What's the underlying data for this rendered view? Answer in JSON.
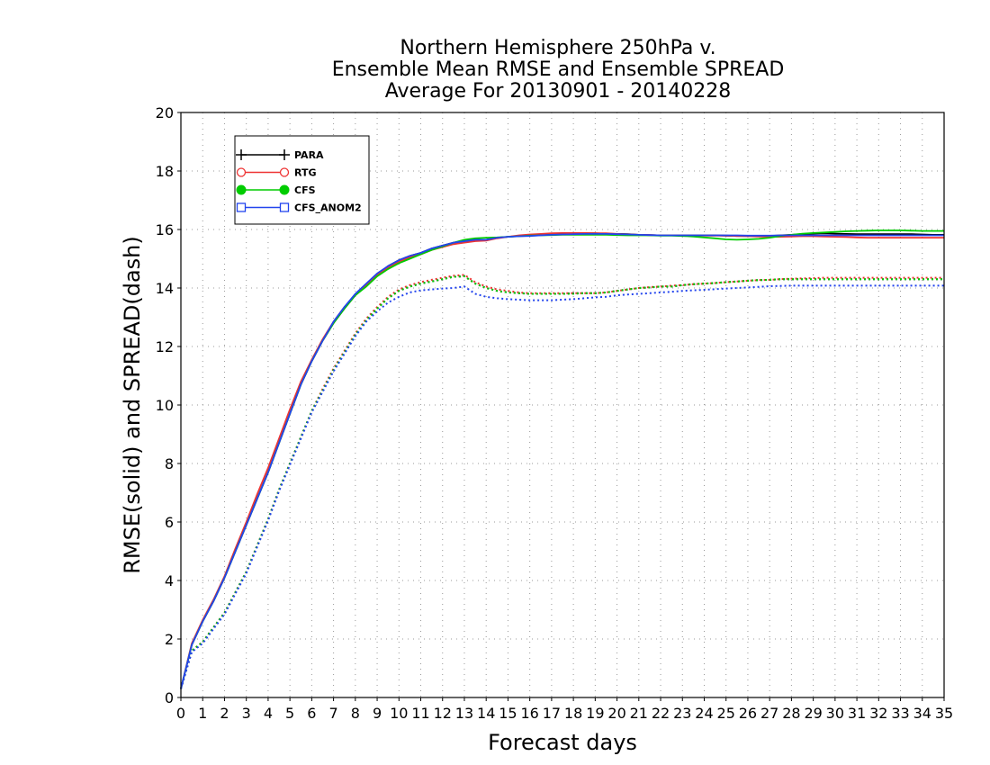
{
  "chart_data": {
    "type": "line",
    "title_lines": [
      "Northern Hemisphere 250hPa v.",
      "Ensemble Mean RMSE and Ensemble SPREAD",
      "Average For 20130901 - 20140228"
    ],
    "xlabel": "Forecast days",
    "ylabel": "RMSE(solid) and SPREAD(dash)",
    "xlim": [
      0,
      35
    ],
    "ylim": [
      0,
      20
    ],
    "x_ticks": [
      0,
      1,
      2,
      3,
      4,
      5,
      6,
      7,
      8,
      9,
      10,
      11,
      12,
      13,
      14,
      15,
      16,
      17,
      18,
      19,
      20,
      21,
      22,
      23,
      24,
      25,
      26,
      27,
      28,
      29,
      30,
      31,
      32,
      33,
      34,
      35
    ],
    "y_ticks": [
      0,
      2,
      4,
      6,
      8,
      10,
      12,
      14,
      16,
      18,
      20
    ],
    "grid": true,
    "legend_placement": "top-left",
    "x": [
      0,
      0.5,
      1,
      1.5,
      2,
      2.5,
      3,
      3.5,
      4,
      4.5,
      5,
      5.5,
      6,
      6.5,
      7,
      7.5,
      8,
      8.5,
      9,
      9.5,
      10,
      10.5,
      11,
      11.5,
      12,
      12.5,
      13,
      13.5,
      14,
      14.5,
      15,
      15.5,
      16,
      16.5,
      17,
      17.5,
      18,
      18.5,
      19,
      19.5,
      20,
      20.5,
      21,
      21.5,
      22,
      22.5,
      23,
      23.5,
      24,
      24.5,
      25,
      25.5,
      26,
      26.5,
      27,
      27.5,
      28,
      28.5,
      29,
      29.5,
      30,
      30.5,
      31,
      31.5,
      32,
      32.5,
      33,
      33.5,
      34,
      34.5,
      35
    ],
    "series": [
      {
        "name": "PARA",
        "color": "#000000",
        "marker": "plus",
        "rmse": [
          0.3,
          1.8,
          2.6,
          3.3,
          4.1,
          5.0,
          5.9,
          6.8,
          7.7,
          8.7,
          9.7,
          10.7,
          11.5,
          12.2,
          12.8,
          13.3,
          13.75,
          14.1,
          14.45,
          14.75,
          14.95,
          15.1,
          15.2,
          15.35,
          15.45,
          15.55,
          15.6,
          15.65,
          15.65,
          15.72,
          15.75,
          15.78,
          15.8,
          15.82,
          15.84,
          15.85,
          15.86,
          15.87,
          15.87,
          15.86,
          15.85,
          15.84,
          15.82,
          15.81,
          15.8,
          15.8,
          15.8,
          15.8,
          15.8,
          15.8,
          15.79,
          15.78,
          15.78,
          15.78,
          15.78,
          15.8,
          15.82,
          15.84,
          15.86,
          15.87,
          15.86,
          15.85,
          15.84,
          15.84,
          15.84,
          15.84,
          15.84,
          15.84,
          15.83,
          15.82,
          15.82
        ],
        "spread": [
          0.3,
          1.6,
          1.9,
          2.4,
          2.9,
          3.6,
          4.3,
          5.2,
          6.1,
          7.1,
          8.0,
          8.9,
          9.8,
          10.5,
          11.2,
          11.8,
          12.4,
          12.9,
          13.3,
          13.65,
          13.9,
          14.05,
          14.15,
          14.22,
          14.3,
          14.38,
          14.4,
          14.15,
          14.0,
          13.9,
          13.85,
          13.82,
          13.8,
          13.8,
          13.8,
          13.8,
          13.82,
          13.82,
          13.82,
          13.85,
          13.9,
          13.95,
          14.0,
          14.02,
          14.05,
          14.05,
          14.1,
          14.13,
          14.15,
          14.17,
          14.2,
          14.22,
          14.25,
          14.27,
          14.28,
          14.3,
          14.3,
          14.3,
          14.3,
          14.3,
          14.3,
          14.3,
          14.3,
          14.3,
          14.3,
          14.3,
          14.3,
          14.3,
          14.3,
          14.3,
          14.3
        ]
      },
      {
        "name": "RTG",
        "color": "#ee3333",
        "marker": "circle",
        "rmse": [
          0.3,
          1.85,
          2.65,
          3.35,
          4.15,
          5.1,
          6.0,
          6.95,
          7.85,
          8.85,
          9.85,
          10.8,
          11.55,
          12.25,
          12.85,
          13.35,
          13.75,
          14.1,
          14.45,
          14.7,
          14.9,
          15.05,
          15.15,
          15.3,
          15.4,
          15.5,
          15.55,
          15.6,
          15.62,
          15.7,
          15.75,
          15.8,
          15.83,
          15.85,
          15.87,
          15.88,
          15.88,
          15.88,
          15.87,
          15.87,
          15.85,
          15.83,
          15.82,
          15.81,
          15.8,
          15.8,
          15.79,
          15.79,
          15.79,
          15.79,
          15.79,
          15.78,
          15.77,
          15.76,
          15.75,
          15.75,
          15.76,
          15.77,
          15.77,
          15.76,
          15.75,
          15.74,
          15.73,
          15.72,
          15.72,
          15.72,
          15.72,
          15.72,
          15.72,
          15.72,
          15.72
        ],
        "spread": [
          0.3,
          1.6,
          1.9,
          2.4,
          2.9,
          3.6,
          4.3,
          5.2,
          6.1,
          7.1,
          8.0,
          8.9,
          9.8,
          10.55,
          11.25,
          11.85,
          12.45,
          12.95,
          13.35,
          13.7,
          13.95,
          14.1,
          14.2,
          14.28,
          14.35,
          14.42,
          14.45,
          14.2,
          14.05,
          13.95,
          13.9,
          13.85,
          13.82,
          13.82,
          13.82,
          13.82,
          13.82,
          13.82,
          13.82,
          13.85,
          13.9,
          13.95,
          14.0,
          14.03,
          14.05,
          14.08,
          14.1,
          14.13,
          14.15,
          14.17,
          14.2,
          14.22,
          14.25,
          14.27,
          14.28,
          14.3,
          14.32,
          14.33,
          14.34,
          14.35,
          14.35,
          14.35,
          14.35,
          14.35,
          14.35,
          14.35,
          14.35,
          14.35,
          14.35,
          14.35,
          14.35
        ]
      },
      {
        "name": "CFS",
        "color": "#00cc00",
        "marker": "dot",
        "rmse": [
          0.3,
          1.8,
          2.6,
          3.3,
          4.1,
          5.0,
          5.9,
          6.8,
          7.7,
          8.7,
          9.7,
          10.7,
          11.5,
          12.2,
          12.8,
          13.3,
          13.75,
          14.05,
          14.4,
          14.65,
          14.85,
          15.0,
          15.15,
          15.3,
          15.42,
          15.55,
          15.65,
          15.7,
          15.72,
          15.73,
          15.75,
          15.77,
          15.79,
          15.8,
          15.81,
          15.82,
          15.82,
          15.82,
          15.82,
          15.82,
          15.81,
          15.8,
          15.8,
          15.8,
          15.79,
          15.79,
          15.78,
          15.76,
          15.73,
          15.7,
          15.66,
          15.65,
          15.66,
          15.68,
          15.72,
          15.78,
          15.82,
          15.86,
          15.88,
          15.9,
          15.92,
          15.94,
          15.95,
          15.96,
          15.97,
          15.97,
          15.97,
          15.96,
          15.95,
          15.95,
          15.95
        ],
        "spread": [
          0.3,
          1.6,
          1.9,
          2.4,
          2.9,
          3.6,
          4.3,
          5.2,
          6.1,
          7.1,
          8.0,
          8.9,
          9.8,
          10.5,
          11.2,
          11.8,
          12.4,
          12.9,
          13.3,
          13.65,
          13.9,
          14.05,
          14.15,
          14.22,
          14.3,
          14.38,
          14.4,
          14.15,
          14.0,
          13.9,
          13.85,
          13.82,
          13.8,
          13.8,
          13.8,
          13.8,
          13.8,
          13.82,
          13.82,
          13.85,
          13.9,
          13.95,
          14.0,
          14.02,
          14.05,
          14.05,
          14.1,
          14.13,
          14.15,
          14.17,
          14.2,
          14.22,
          14.25,
          14.27,
          14.28,
          14.3,
          14.3,
          14.3,
          14.3,
          14.3,
          14.3,
          14.3,
          14.3,
          14.3,
          14.3,
          14.3,
          14.3,
          14.3,
          14.3,
          14.3,
          14.3
        ]
      },
      {
        "name": "CFS_ANOM2",
        "color": "#2244ee",
        "marker": "square",
        "rmse": [
          0.3,
          1.8,
          2.6,
          3.3,
          4.1,
          5.0,
          5.9,
          6.8,
          7.7,
          8.7,
          9.7,
          10.7,
          11.5,
          12.2,
          12.85,
          13.35,
          13.8,
          14.15,
          14.5,
          14.75,
          14.95,
          15.1,
          15.2,
          15.35,
          15.45,
          15.55,
          15.6,
          15.65,
          15.65,
          15.72,
          15.75,
          15.77,
          15.78,
          15.8,
          15.82,
          15.83,
          15.84,
          15.85,
          15.85,
          15.85,
          15.84,
          15.83,
          15.82,
          15.81,
          15.8,
          15.8,
          15.8,
          15.8,
          15.8,
          15.8,
          15.8,
          15.8,
          15.79,
          15.79,
          15.79,
          15.8,
          15.8,
          15.8,
          15.8,
          15.8,
          15.8,
          15.8,
          15.8,
          15.8,
          15.8,
          15.8,
          15.8,
          15.8,
          15.8,
          15.8,
          15.8
        ],
        "spread": [
          0.3,
          1.55,
          1.85,
          2.35,
          2.85,
          3.55,
          4.25,
          5.15,
          6.05,
          7.05,
          7.95,
          8.85,
          9.75,
          10.45,
          11.15,
          11.75,
          12.35,
          12.85,
          13.2,
          13.5,
          13.7,
          13.85,
          13.92,
          13.95,
          13.98,
          14.0,
          14.05,
          13.8,
          13.7,
          13.65,
          13.62,
          13.6,
          13.58,
          13.58,
          13.58,
          13.6,
          13.62,
          13.65,
          13.68,
          13.7,
          13.75,
          13.78,
          13.8,
          13.82,
          13.85,
          13.87,
          13.9,
          13.92,
          13.94,
          13.96,
          13.98,
          14.0,
          14.02,
          14.04,
          14.06,
          14.07,
          14.08,
          14.08,
          14.08,
          14.08,
          14.08,
          14.08,
          14.08,
          14.08,
          14.08,
          14.08,
          14.08,
          14.08,
          14.08,
          14.08,
          14.08
        ]
      }
    ]
  }
}
